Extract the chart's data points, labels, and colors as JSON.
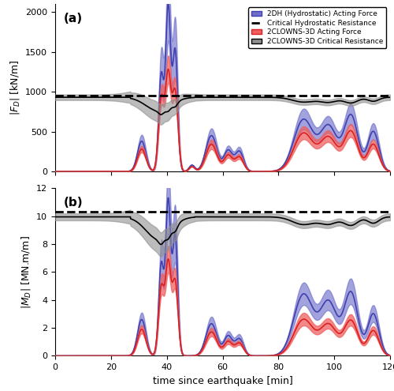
{
  "title_a": "(a)",
  "title_b": "(b)",
  "xlabel": "time since earthquake [min]",
  "ylabel_a": "$|F_D|$ [kN/m]",
  "ylabel_b": "$|M_D|$ [MN.m/m]",
  "xlim": [
    0,
    120
  ],
  "ylim_a": [
    0,
    2100
  ],
  "ylim_b": [
    0,
    12
  ],
  "yticks_a": [
    0,
    500,
    1000,
    1500,
    2000
  ],
  "yticks_b": [
    0,
    2,
    4,
    6,
    8,
    10,
    12
  ],
  "xticks": [
    0,
    20,
    40,
    60,
    80,
    100,
    120
  ],
  "color_blue": "#4040b0",
  "color_blue_fill": "#7070cc",
  "color_red": "#dd2020",
  "color_red_fill": "#ee6060",
  "color_black": "#000000",
  "color_gray": "#505050",
  "color_gray_fill": "#909090",
  "dashed_a": 950,
  "dashed_b": 10.3,
  "legend_labels": [
    "2DH (Hydrostatic) Acting Force",
    "Critical Hydrostatic Resistance",
    "2CLOWNS-3D Acting Force",
    "2CLOWNS-3D Critical Resistance"
  ],
  "figsize": [
    5.0,
    4.95
  ],
  "dpi": 100
}
